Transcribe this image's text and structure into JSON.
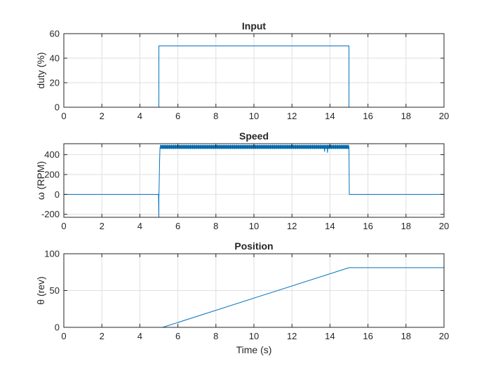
{
  "chart_data": [
    {
      "type": "line",
      "title": "Input",
      "xlabel": "",
      "ylabel": "duty (%)",
      "xlim": [
        0,
        20
      ],
      "ylim": [
        0,
        60
      ],
      "xticks": [
        0,
        2,
        4,
        6,
        8,
        10,
        12,
        14,
        16,
        18,
        20
      ],
      "yticks": [
        0,
        20,
        40,
        60
      ],
      "grid": true,
      "color": "#0072BD",
      "series": [
        {
          "x": [
            0,
            5,
            5,
            15,
            15,
            20
          ],
          "y": [
            0,
            0,
            50,
            50,
            0,
            0
          ]
        }
      ]
    },
    {
      "type": "line",
      "title": "Speed",
      "xlabel": "",
      "ylabel": "ω (RPM)",
      "xlim": [
        0,
        20
      ],
      "ylim": [
        -230,
        510
      ],
      "xticks": [
        0,
        2,
        4,
        6,
        8,
        10,
        12,
        14,
        16,
        18,
        20
      ],
      "yticks": [
        -200,
        0,
        200,
        400
      ],
      "grid": true,
      "color": "#0072BD",
      "series": [
        {
          "x": [
            0,
            4.98,
            5.0,
            5.0,
            5.04,
            5.06,
            5.09,
            5.12,
            13.7,
            13.72,
            13.74,
            13.85,
            13.87,
            13.89,
            15.0,
            15.02,
            20
          ],
          "y": [
            0,
            0,
            -230,
            -40,
            350,
            470,
            490,
            470,
            480,
            430,
            480,
            480,
            420,
            480,
            480,
            0,
            0
          ]
        }
      ]
    },
    {
      "type": "line",
      "title": "Position",
      "xlabel": "Time (s)",
      "ylabel": "θ (rev)",
      "xlim": [
        0,
        20
      ],
      "ylim": [
        0,
        100
      ],
      "xticks": [
        0,
        2,
        4,
        6,
        8,
        10,
        12,
        14,
        16,
        18,
        20
      ],
      "yticks": [
        0,
        50,
        100
      ],
      "grid": true,
      "color": "#0072BD",
      "series": [
        {
          "x": [
            0,
            5.2,
            15,
            20
          ],
          "y": [
            0,
            0,
            81,
            81
          ]
        }
      ]
    }
  ]
}
